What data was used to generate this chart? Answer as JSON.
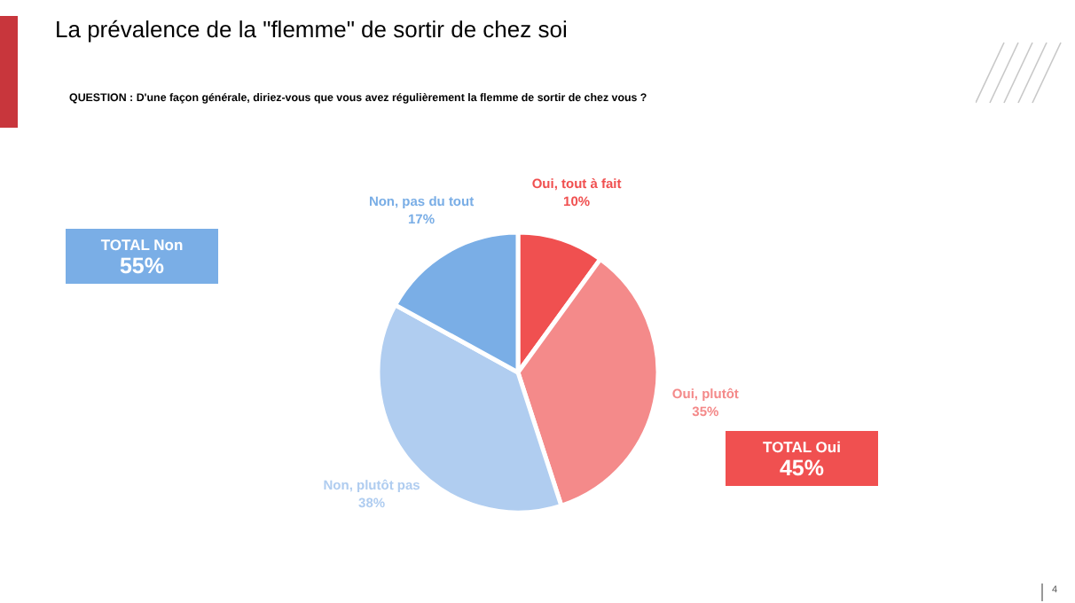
{
  "chart_data": {
    "type": "pie",
    "title": "La prévalence de la \"flemme\" de sortir de chez soi",
    "subtitle": "QUESTION : D'une façon générale, diriez-vous que vous avez régulièrement la flemme de sortir de chez vous ?",
    "categories": [
      "Oui, tout à fait",
      "Oui, plutôt",
      "Non, plutôt pas",
      "Non, pas du tout"
    ],
    "values": [
      10,
      35,
      38,
      17
    ],
    "value_labels": [
      "10%",
      "35%",
      "38%",
      "17%"
    ],
    "colors": [
      "#f05050",
      "#f48a8a",
      "#b0cdf0",
      "#7aaee6"
    ],
    "annotations": [
      "TOTAL Non",
      "55%",
      "TOTAL Oui",
      "45%",
      "4"
    ]
  }
}
